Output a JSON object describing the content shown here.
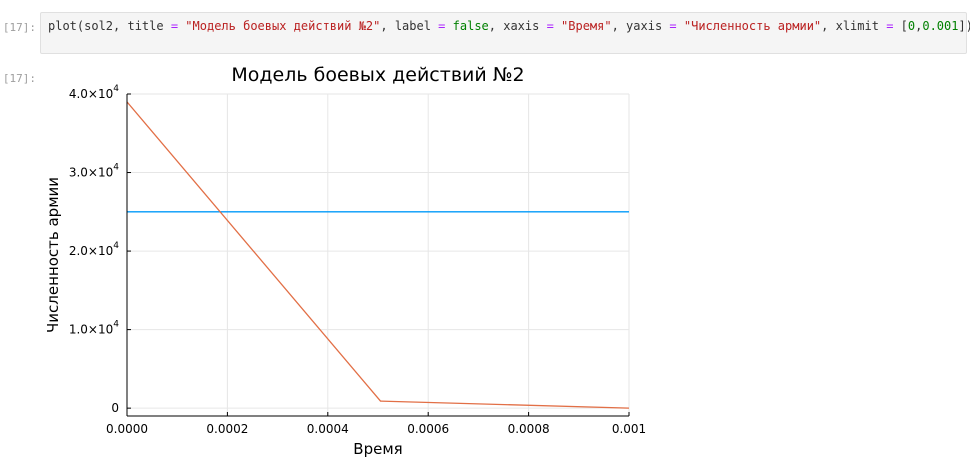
{
  "cell": {
    "in_prompt": "[17]:",
    "out_prompt": "[17]:",
    "code_tokens": [
      {
        "t": "plot(sol2, title ",
        "c": "plain"
      },
      {
        "t": "=",
        "c": "op"
      },
      {
        "t": " ",
        "c": "plain"
      },
      {
        "t": "\"Модель боевых действий №2\"",
        "c": "str"
      },
      {
        "t": ", label ",
        "c": "plain"
      },
      {
        "t": "=",
        "c": "op"
      },
      {
        "t": " ",
        "c": "plain"
      },
      {
        "t": "false",
        "c": "kw"
      },
      {
        "t": ", xaxis ",
        "c": "plain"
      },
      {
        "t": "=",
        "c": "op"
      },
      {
        "t": " ",
        "c": "plain"
      },
      {
        "t": "\"Время\"",
        "c": "str"
      },
      {
        "t": ", yaxis ",
        "c": "plain"
      },
      {
        "t": "=",
        "c": "op"
      },
      {
        "t": " ",
        "c": "plain"
      },
      {
        "t": "\"Численность армии\"",
        "c": "str"
      },
      {
        "t": ", xlimit ",
        "c": "plain"
      },
      {
        "t": "=",
        "c": "op"
      },
      {
        "t": " [",
        "c": "plain"
      },
      {
        "t": "0",
        "c": "num"
      },
      {
        "t": ",",
        "c": "plain"
      },
      {
        "t": "0.001",
        "c": "num"
      },
      {
        "t": "])",
        "c": "plain"
      }
    ]
  },
  "chart_data": {
    "type": "line",
    "title": "Модель боевых действий №2",
    "xlabel": "Время",
    "ylabel": "Численность армии",
    "xlim": [
      0,
      0.001
    ],
    "ylim": [
      -1000,
      40000
    ],
    "grid": true,
    "legend": "none",
    "x_ticks": [
      {
        "value": 0,
        "label": "0.0000"
      },
      {
        "value": 0.0002,
        "label": "0.0002"
      },
      {
        "value": 0.0004,
        "label": "0.0004"
      },
      {
        "value": 0.0006,
        "label": "0.0006"
      },
      {
        "value": 0.0008,
        "label": "0.0008"
      },
      {
        "value": 0.001,
        "label": "0.001"
      }
    ],
    "y_ticks": [
      {
        "value": 0,
        "mantissa": "0",
        "exp": ""
      },
      {
        "value": 10000,
        "mantissa": "1.0×10",
        "exp": "4"
      },
      {
        "value": 20000,
        "mantissa": "2.0×10",
        "exp": "4"
      },
      {
        "value": 30000,
        "mantissa": "3.0×10",
        "exp": "4"
      },
      {
        "value": 40000,
        "mantissa": "4.0×10",
        "exp": "4"
      }
    ],
    "series": [
      {
        "color": "#009af9",
        "x": [
          0,
          0.001
        ],
        "y": [
          25000,
          25000
        ]
      },
      {
        "color": "#e26f46",
        "x": [
          0,
          0.000505,
          0.001
        ],
        "y": [
          39000,
          900,
          0
        ]
      }
    ]
  }
}
